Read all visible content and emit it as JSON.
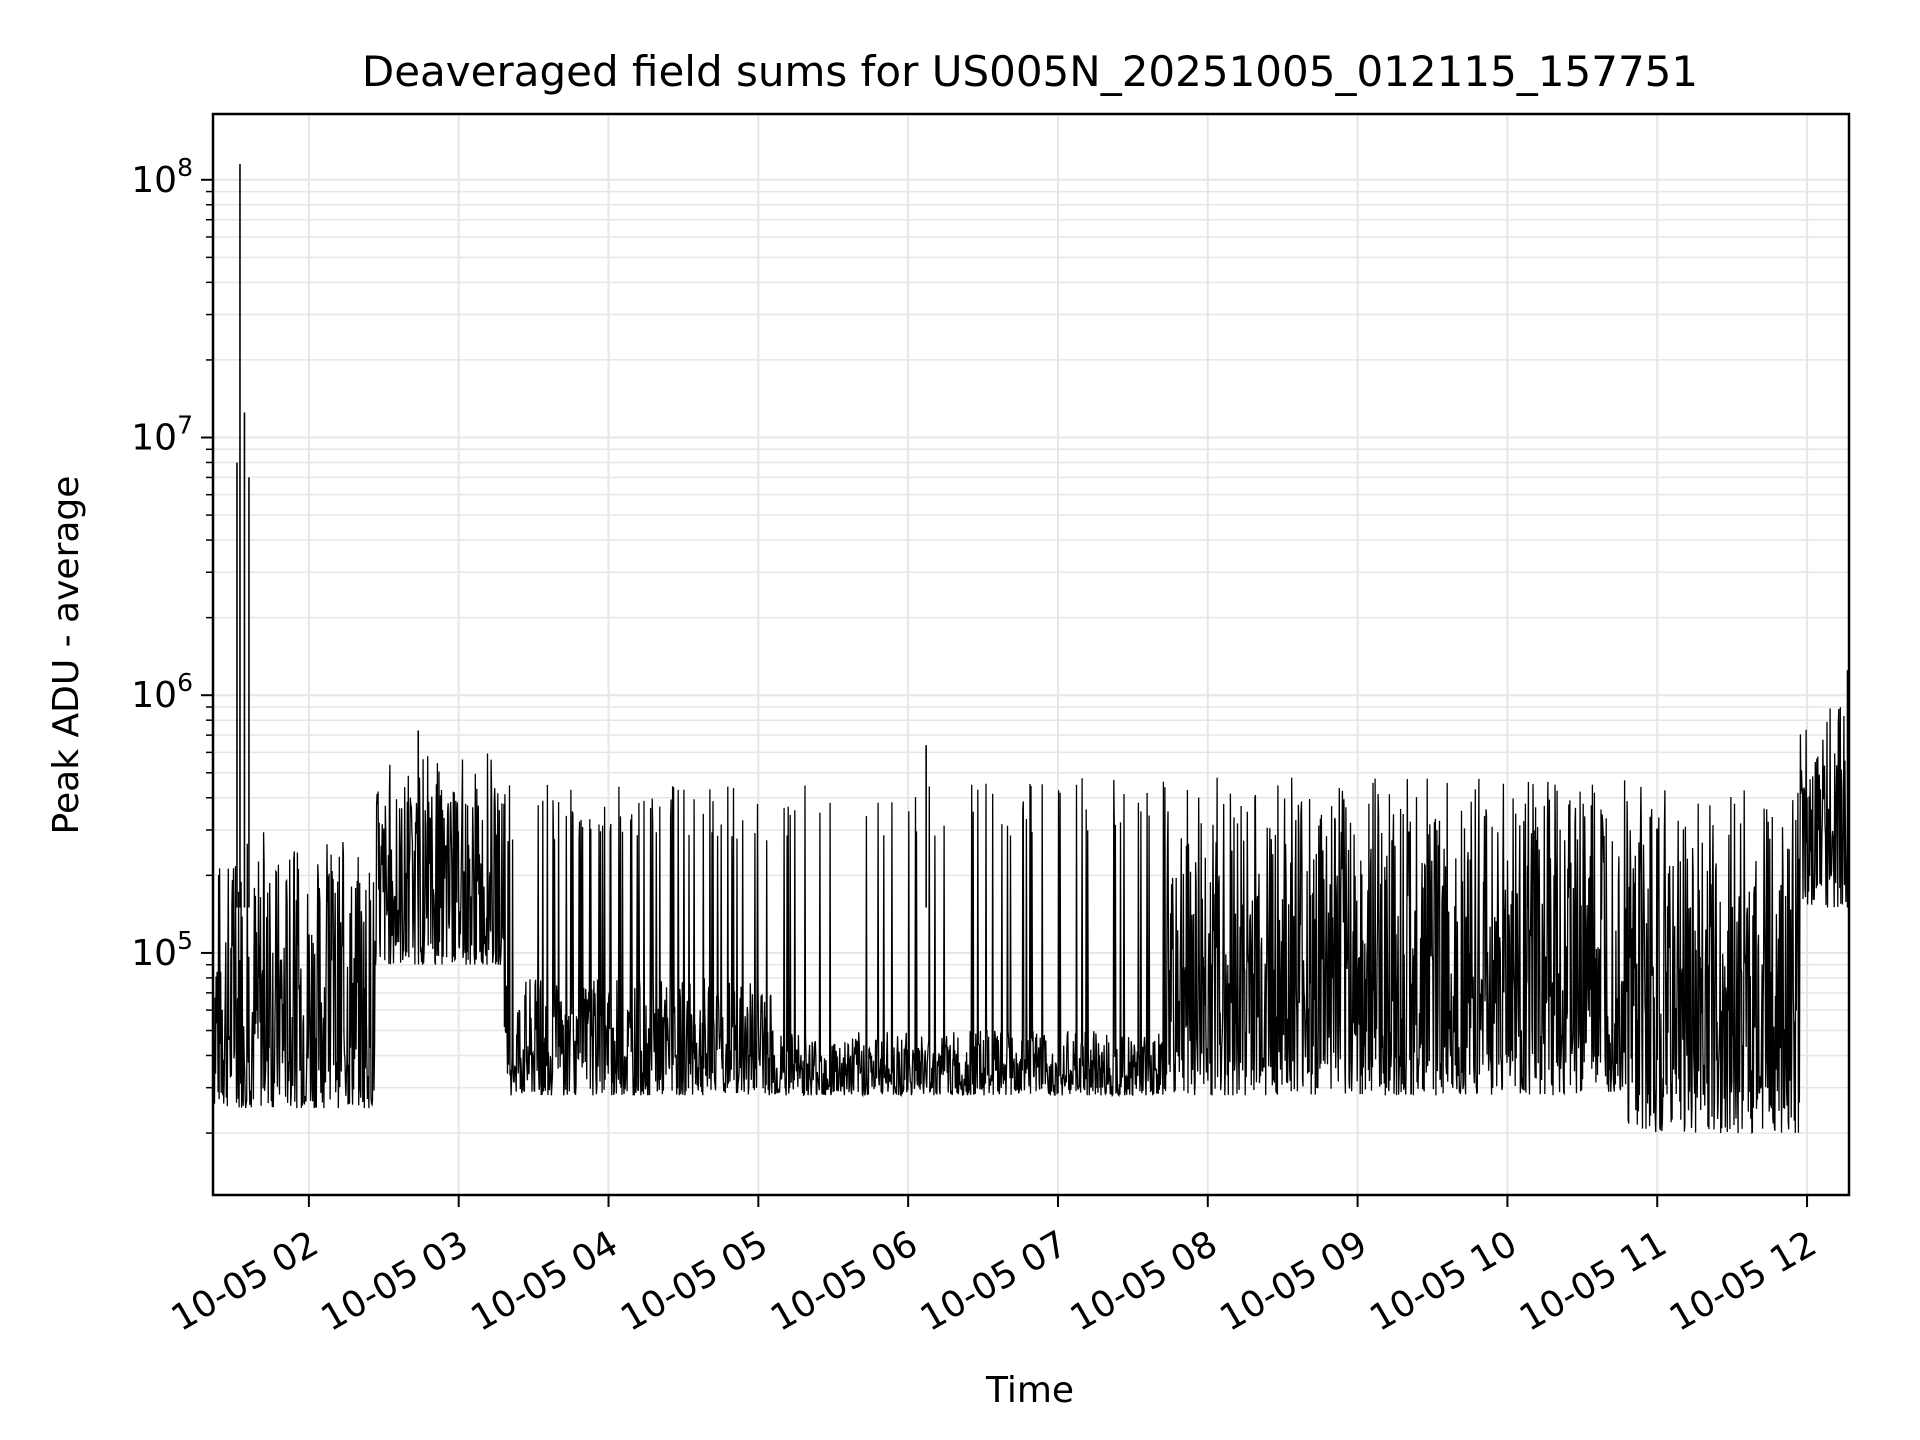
{
  "chart_data": {
    "type": "line",
    "title": "Deaveraged field sums for US005N_20251005_012115_157751",
    "xlabel": "Time",
    "ylabel": "Peak ADU - average",
    "yscale": "log",
    "ylim": [
      11500,
      180000000
    ],
    "xlim_hours": [
      1.36,
      12.28
    ],
    "x_ticks": [
      {
        "hour": 2,
        "label": "10-05 02"
      },
      {
        "hour": 3,
        "label": "10-05 03"
      },
      {
        "hour": 4,
        "label": "10-05 04"
      },
      {
        "hour": 5,
        "label": "10-05 05"
      },
      {
        "hour": 6,
        "label": "10-05 06"
      },
      {
        "hour": 7,
        "label": "10-05 07"
      },
      {
        "hour": 8,
        "label": "10-05 08"
      },
      {
        "hour": 9,
        "label": "10-05 09"
      },
      {
        "hour": 10,
        "label": "10-05 10"
      },
      {
        "hour": 11,
        "label": "10-05 11"
      },
      {
        "hour": 12,
        "label": "10-05 12"
      }
    ],
    "y_ticks": [
      {
        "value": 100000,
        "base": "10",
        "exp": "5"
      },
      {
        "value": 1000000,
        "base": "10",
        "exp": "6"
      },
      {
        "value": 10000000,
        "base": "10",
        "exp": "7"
      },
      {
        "value": 100000000,
        "base": "10",
        "exp": "8"
      }
    ],
    "grid": true,
    "line_color": "#000000",
    "grid_color": "#e6e6e6",
    "segments": [
      {
        "start": 1.36,
        "end": 2.45,
        "low": 25000,
        "high": 250000,
        "spike_prob": 0.05,
        "spike_val": 300000
      },
      {
        "start": 2.45,
        "end": 3.3,
        "low": 90000,
        "high": 450000,
        "spike_prob": 0.08,
        "spike_val": 600000
      },
      {
        "start": 3.3,
        "end": 5.1,
        "low": 28000,
        "high": 80000,
        "spike_prob": 0.1,
        "spike_val": 450000
      },
      {
        "start": 5.1,
        "end": 7.7,
        "low": 28000,
        "high": 50000,
        "spike_prob": 0.06,
        "spike_val": 480000
      },
      {
        "start": 7.7,
        "end": 10.8,
        "low": 28000,
        "high": 480000,
        "spike_prob": 0.0,
        "spike_val": 500000
      },
      {
        "start": 10.8,
        "end": 11.95,
        "low": 20000,
        "high": 450000,
        "spike_prob": 0.0,
        "spike_val": 450000
      },
      {
        "start": 11.95,
        "end": 12.28,
        "low": 150000,
        "high": 600000,
        "spike_prob": 0.15,
        "spike_val": 900000
      }
    ],
    "spikes": [
      {
        "hour": 1.52,
        "value": 8000000
      },
      {
        "hour": 1.54,
        "value": 115000000
      },
      {
        "hour": 1.57,
        "value": 12500000
      },
      {
        "hour": 1.6,
        "value": 7000000
      },
      {
        "hour": 2.73,
        "value": 730000
      },
      {
        "hour": 6.12,
        "value": 640000
      },
      {
        "hour": 12.27,
        "value": 1250000
      }
    ]
  }
}
